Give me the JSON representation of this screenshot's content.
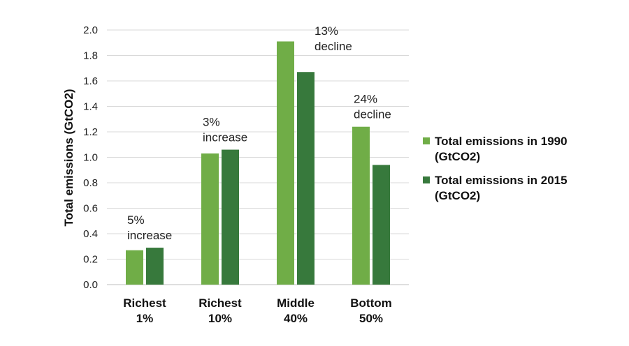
{
  "chart_data": {
    "type": "bar",
    "categories": [
      [
        "Richest",
        "1%"
      ],
      [
        "Richest",
        "10%"
      ],
      [
        "Middle",
        "40%"
      ],
      [
        "Bottom",
        "50%"
      ]
    ],
    "series": [
      {
        "name": [
          "Total emissions in 1990",
          "(GtCO2)"
        ],
        "values": [
          0.27,
          1.03,
          1.91,
          1.24
        ],
        "color": "#70ad47"
      },
      {
        "name": [
          "Total emissions in 2015",
          "(GtCO2)"
        ],
        "values": [
          0.29,
          1.06,
          1.67,
          0.94
        ],
        "color": "#37793c"
      }
    ],
    "annotations": [
      [
        "5%",
        "increase"
      ],
      [
        "3%",
        "increase"
      ],
      [
        "13%",
        "decline"
      ],
      [
        "24%",
        "decline"
      ]
    ],
    "ylabel": "Total emissions (GtCO2)",
    "ylim": [
      0,
      2.0
    ],
    "yticks": [
      "0.0",
      "0.2",
      "0.4",
      "0.6",
      "0.8",
      "1.0",
      "1.2",
      "1.4",
      "1.6",
      "1.8",
      "2.0"
    ],
    "grid": true,
    "legend": "right"
  }
}
